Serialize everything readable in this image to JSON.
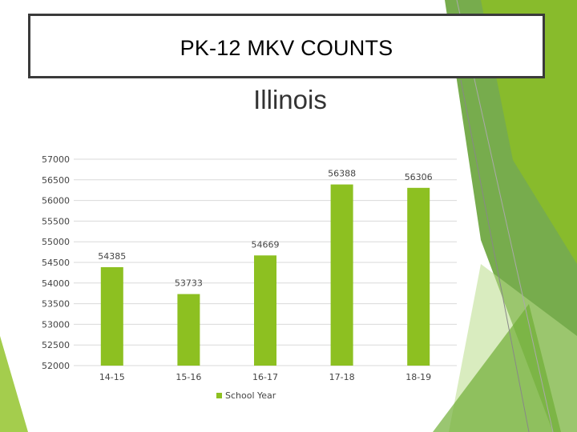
{
  "slide": {
    "title": "PK-12 MKV COUNTS"
  },
  "colors": {
    "bar": "#8dc021",
    "accent_dark": "#5f9e2e",
    "accent_light": "#b9dc8a"
  },
  "chart_data": {
    "type": "bar",
    "title": "Illinois",
    "categories": [
      "14-15",
      "15-16",
      "16-17",
      "17-18",
      "18-19"
    ],
    "series": [
      {
        "name": "School Year",
        "values": [
          54385,
          53733,
          54669,
          56388,
          56306
        ]
      }
    ],
    "ylim": [
      52000,
      57000
    ],
    "yticks": [
      52000,
      52500,
      53000,
      53500,
      54000,
      54500,
      55000,
      55500,
      56000,
      56500,
      57000
    ],
    "grid": true,
    "legend": "bottom"
  }
}
